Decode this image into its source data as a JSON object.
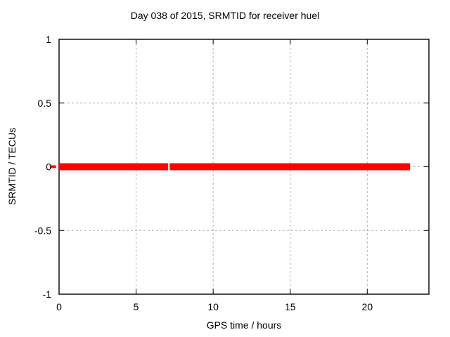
{
  "chart_data": {
    "type": "line",
    "title": "Day 038 of 2015, SRMTID for receiver huel",
    "xlabel": "GPS time / hours",
    "ylabel": "SRMTID / TECUs",
    "xlim": [
      0,
      24
    ],
    "ylim": [
      -1,
      1
    ],
    "xticks": [
      0,
      5,
      10,
      15,
      20
    ],
    "xtick_labels": [
      "0",
      "5",
      "10",
      "15",
      "20"
    ],
    "yticks": [
      -1,
      -0.5,
      0,
      0.5,
      1
    ],
    "ytick_labels": [
      "-1",
      "-0.5",
      "0",
      "0.5",
      "1"
    ],
    "grid": true,
    "legend": "none",
    "colors": {
      "series_red": "#ff0000",
      "grid_gray": "#b0b0b0",
      "axis_black": "#000000",
      "background": "#ffffff"
    },
    "series": [
      {
        "name": "SRMTID",
        "color": "#ff0000",
        "y": 0,
        "linewidth": 10,
        "segments": [
          [
            0,
            7.07
          ],
          [
            7.18,
            22.77
          ]
        ]
      }
    ],
    "offaxis_mark": {
      "comment": "small red dash just outside left border at y=0",
      "x": [
        -0.55,
        -0.2
      ],
      "y": 0,
      "color": "#ff0000",
      "linewidth": 4
    }
  }
}
